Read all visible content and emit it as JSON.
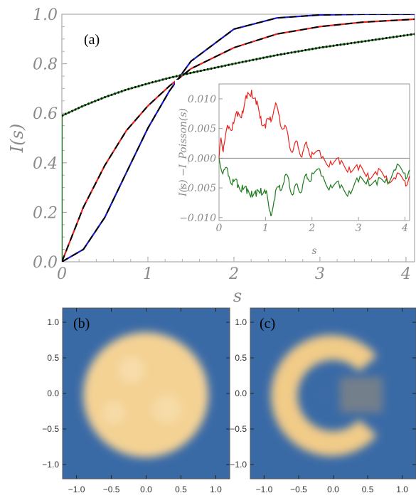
{
  "chart_data": [
    {
      "type": "line",
      "panel_label": "(a)",
      "xlabel": "s",
      "ylabel": "I(s)",
      "xlim": [
        0,
        4.1
      ],
      "ylim": [
        0,
        1.0
      ],
      "x_ticks": [
        "0",
        "1",
        "2",
        "3",
        "4"
      ],
      "y_ticks": [
        "0.0",
        "0.2",
        "0.4",
        "0.6",
        "0.8",
        "1.0"
      ],
      "colors": {
        "red": "#e8231c",
        "blue": "#1a1ad6",
        "green": "#1e7a1e",
        "theory": "#000000"
      },
      "series": [
        {
          "color": "red",
          "style": "solid",
          "x": [
            0,
            0.25,
            0.5,
            0.75,
            1.0,
            1.25,
            1.5,
            2.0,
            2.5,
            3.0,
            3.5,
            4.1
          ],
          "y": [
            0,
            0.22,
            0.39,
            0.53,
            0.63,
            0.71,
            0.78,
            0.865,
            0.92,
            0.95,
            0.968,
            0.98
          ]
        },
        {
          "color": "blue",
          "style": "solid",
          "x": [
            0,
            0.25,
            0.5,
            0.75,
            1.0,
            1.25,
            1.5,
            2.0,
            2.5,
            3.0,
            3.5,
            4.1
          ],
          "y": [
            0,
            0.05,
            0.18,
            0.36,
            0.54,
            0.69,
            0.81,
            0.94,
            0.985,
            0.997,
            1.0,
            1.0
          ]
        },
        {
          "color": "green",
          "style": "solid",
          "x": [
            0,
            0,
            0.25,
            0.5,
            0.75,
            1.0,
            1.25,
            1.5,
            2.0,
            2.5,
            3.0,
            3.5,
            4.1
          ],
          "y": [
            0,
            0.59,
            0.63,
            0.665,
            0.695,
            0.72,
            0.743,
            0.763,
            0.8,
            0.835,
            0.865,
            0.89,
            0.92
          ]
        },
        {
          "color": "theory",
          "style": "dashed",
          "x": [
            0,
            0.25,
            0.5,
            0.75,
            1.0,
            1.25,
            1.5,
            2.0,
            2.5,
            3.0,
            3.5,
            4.1
          ],
          "y": [
            0,
            0.22,
            0.39,
            0.53,
            0.63,
            0.71,
            0.78,
            0.865,
            0.92,
            0.95,
            0.968,
            0.98
          ]
        },
        {
          "color": "theory",
          "style": "dashed",
          "x": [
            0,
            0.25,
            0.5,
            0.75,
            1.0,
            1.25,
            1.5,
            2.0,
            2.5,
            3.0,
            3.5,
            4.1
          ],
          "y": [
            0,
            0.05,
            0.18,
            0.36,
            0.54,
            0.69,
            0.81,
            0.94,
            0.985,
            0.997,
            1.0,
            1.0
          ]
        },
        {
          "color": "theory",
          "style": "dotted",
          "x": [
            0,
            0.25,
            0.5,
            0.75,
            1.0,
            1.25,
            1.5,
            2.0,
            2.5,
            3.0,
            3.5,
            4.1
          ],
          "y": [
            0.59,
            0.63,
            0.665,
            0.695,
            0.72,
            0.743,
            0.763,
            0.8,
            0.835,
            0.865,
            0.89,
            0.92
          ]
        }
      ],
      "inset": {
        "xlabel": "s",
        "ylabel": "I(s) −I_Poisson(s)",
        "xlim": [
          0,
          4.1
        ],
        "ylim": [
          -0.0105,
          0.0125
        ],
        "x_ticks": [
          "0",
          "1",
          "2",
          "3",
          "4"
        ],
        "y_ticks": [
          "0.010",
          "0.005",
          "0.000",
          "−0.005",
          "−0.010"
        ],
        "series": [
          {
            "color": "red",
            "x": [
              0,
              0.05,
              0.1,
              0.2,
              0.3,
              0.4,
              0.5,
              0.6,
              0.7,
              0.8,
              0.9,
              1.0,
              1.1,
              1.2,
              1.3,
              1.4,
              1.5,
              1.6,
              1.7,
              1.8,
              1.9,
              2.0,
              2.2,
              2.4,
              2.6,
              2.8,
              3.0,
              3.2,
              3.4,
              3.6,
              3.8,
              4.0,
              4.1
            ],
            "y": [
              0,
              0.003,
              0.002,
              0.005,
              0.006,
              0.007,
              0.008,
              0.01,
              0.0115,
              0.009,
              0.007,
              0.005,
              0.007,
              0.0085,
              0.007,
              0.005,
              0.003,
              0.0015,
              0.002,
              0.001,
              0.0018,
              0.001,
              0.0,
              -0.0005,
              -0.001,
              -0.0015,
              -0.002,
              -0.0025,
              -0.0028,
              -0.003,
              -0.0035,
              -0.0038,
              -0.003
            ]
          },
          {
            "color": "green",
            "x": [
              0,
              0.1,
              0.2,
              0.3,
              0.4,
              0.5,
              0.6,
              0.7,
              0.8,
              0.9,
              1.0,
              1.1,
              1.2,
              1.3,
              1.4,
              1.5,
              1.6,
              1.7,
              1.8,
              1.9,
              2.0,
              2.2,
              2.4,
              2.6,
              2.8,
              3.0,
              3.2,
              3.4,
              3.6,
              3.8,
              4.0,
              4.1
            ],
            "y": [
              0,
              -0.002,
              -0.003,
              -0.0035,
              -0.005,
              -0.0045,
              -0.006,
              -0.0055,
              -0.0065,
              -0.005,
              -0.006,
              -0.009,
              -0.007,
              -0.0045,
              -0.004,
              -0.0035,
              -0.006,
              -0.005,
              -0.0045,
              -0.0035,
              -0.0025,
              -0.003,
              -0.0045,
              -0.005,
              -0.0055,
              -0.004,
              -0.0035,
              -0.0045,
              -0.0035,
              -0.002,
              -0.0025,
              -0.002
            ]
          }
        ]
      }
    },
    {
      "type": "heatmap",
      "panel_label": "(b)",
      "shape": "filled disk",
      "xlim": [
        -1.2,
        1.2
      ],
      "ylim": [
        -1.2,
        1.2
      ],
      "x_ticks": [
        "−1.0",
        "−0.5",
        "0.0",
        "0.5",
        "1.0"
      ],
      "y_ticks": [
        "1.0",
        "0.5",
        "0.0",
        "−0.5",
        "−1.0"
      ],
      "colors": {
        "background": "#3a6aa6",
        "fill": "#f6d9a2",
        "edge": "#c98f40"
      }
    },
    {
      "type": "heatmap",
      "panel_label": "(c)",
      "shape": "ring with opening to the right",
      "xlim": [
        -1.2,
        1.2
      ],
      "ylim": [
        -1.2,
        1.2
      ],
      "x_ticks": [
        "−1.0",
        "−0.5",
        "0.0",
        "0.5",
        "1.0"
      ],
      "y_ticks": [
        "1.0",
        "0.5",
        "0.0",
        "−0.5",
        "−1.0"
      ],
      "colors": {
        "background": "#3a6aa6",
        "fill": "#f6d9a2",
        "edge": "#c98f40"
      }
    }
  ]
}
